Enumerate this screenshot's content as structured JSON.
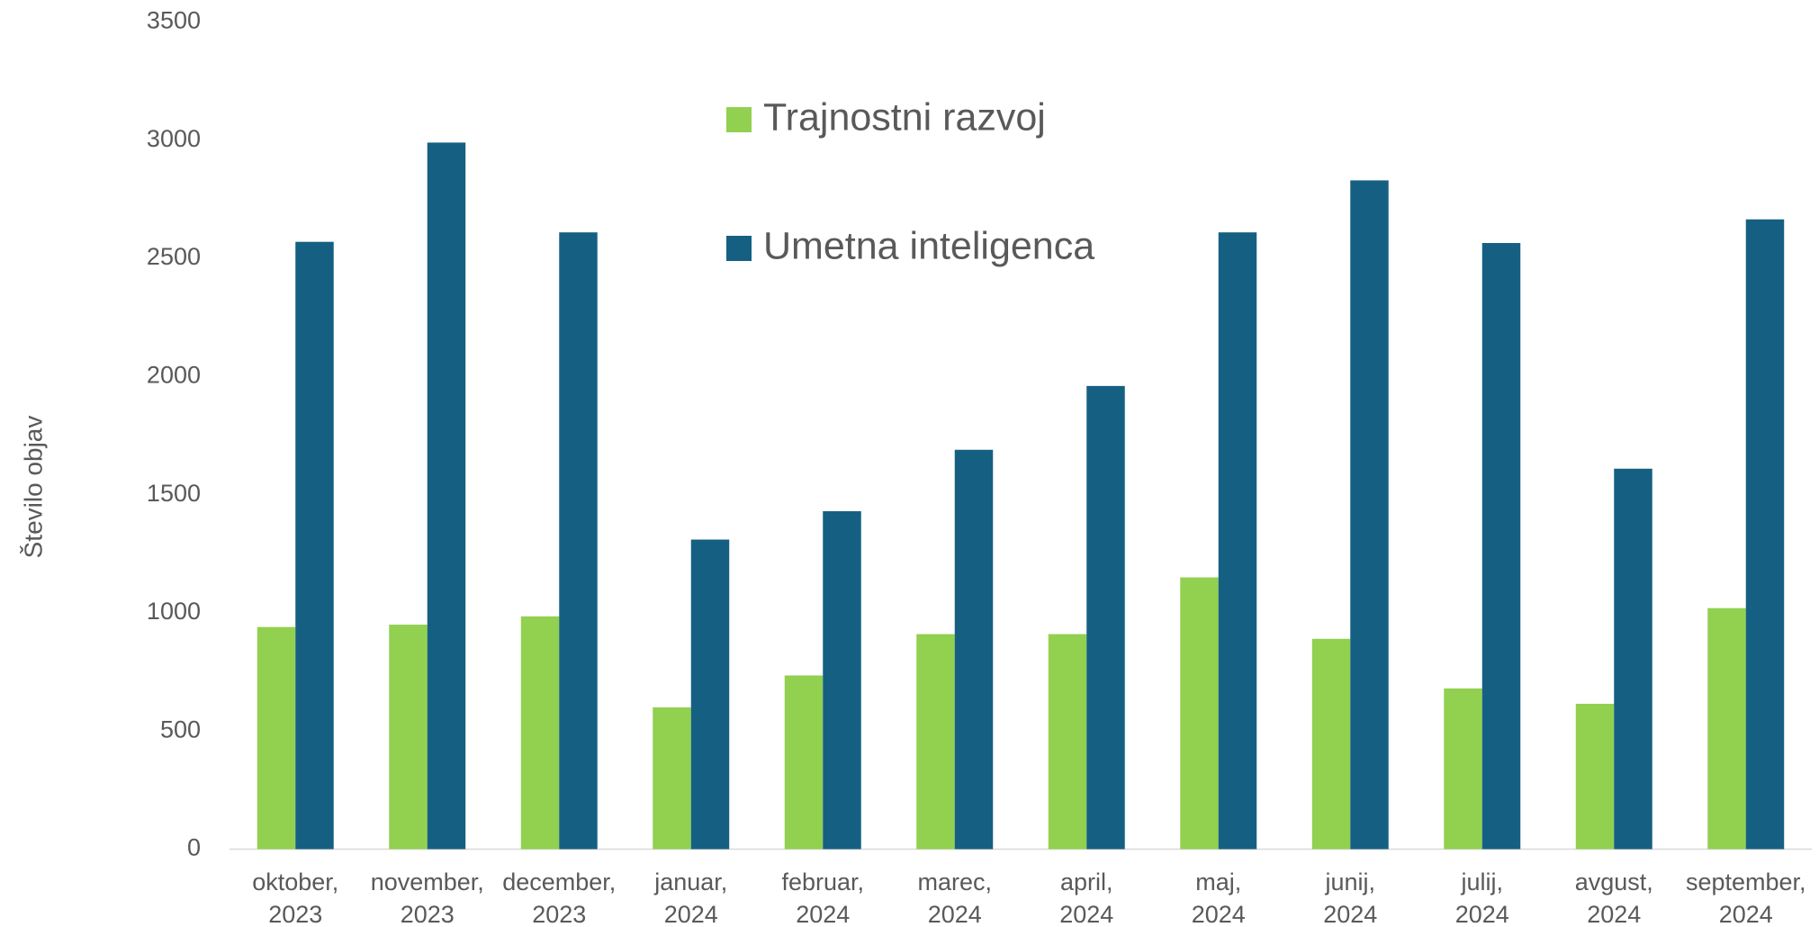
{
  "chart_data": {
    "type": "bar",
    "y_label": "Število objav",
    "categories": [
      "oktober,\n2023",
      "november,\n2023",
      "december,\n2023",
      "januar,\n2024",
      "februar,\n2024",
      "marec,\n2024",
      "april,\n2024",
      "maj,\n2024",
      "junij,\n2024",
      "julij,\n2024",
      "avgust,\n2024",
      "september,\n2024"
    ],
    "series": [
      {
        "name": "Trajnostni razvoj",
        "color": "#92d050",
        "values": [
          940,
          950,
          985,
          600,
          735,
          910,
          910,
          1150,
          890,
          680,
          615,
          1020
        ]
      },
      {
        "name": "Umetna inteligenca",
        "color": "#156082",
        "values": [
          2570,
          2990,
          2610,
          1310,
          1430,
          1690,
          1960,
          2610,
          2830,
          2565,
          1610,
          2665
        ]
      }
    ],
    "ylim": [
      0,
      3500
    ],
    "yticks": [
      0,
      500,
      1000,
      1500,
      2000,
      2500,
      3000,
      3500
    ],
    "grid": false,
    "legend": "top"
  }
}
